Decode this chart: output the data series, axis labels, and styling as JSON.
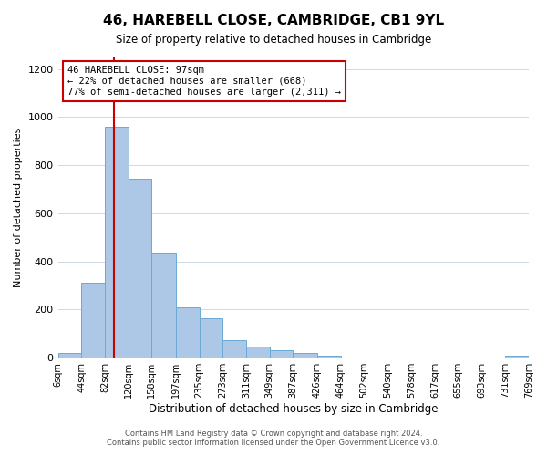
{
  "title": "46, HAREBELL CLOSE, CAMBRIDGE, CB1 9YL",
  "subtitle": "Size of property relative to detached houses in Cambridge",
  "xlabel": "Distribution of detached houses by size in Cambridge",
  "ylabel": "Number of detached properties",
  "bin_labels": [
    "6sqm",
    "44sqm",
    "82sqm",
    "120sqm",
    "158sqm",
    "197sqm",
    "235sqm",
    "273sqm",
    "311sqm",
    "349sqm",
    "387sqm",
    "426sqm",
    "464sqm",
    "502sqm",
    "540sqm",
    "578sqm",
    "617sqm",
    "655sqm",
    "693sqm",
    "731sqm",
    "769sqm"
  ],
  "bar_heights": [
    20,
    310,
    960,
    745,
    435,
    210,
    165,
    72,
    47,
    33,
    18,
    8,
    0,
    0,
    0,
    0,
    0,
    0,
    0,
    8
  ],
  "bar_color": "#adc8e6",
  "bar_edge_color": "#6aaad4",
  "vline_x": 97,
  "vline_color": "#cc0000",
  "annotation_text": "46 HAREBELL CLOSE: 97sqm\n← 22% of detached houses are smaller (668)\n77% of semi-detached houses are larger (2,311) →",
  "annotation_box_color": "#ffffff",
  "annotation_box_edge_color": "#cc0000",
  "ylim": [
    0,
    1250
  ],
  "yticks": [
    0,
    200,
    400,
    600,
    800,
    1000,
    1200
  ],
  "footer_line1": "Contains HM Land Registry data © Crown copyright and database right 2024.",
  "footer_line2": "Contains public sector information licensed under the Open Government Licence v3.0.",
  "background_color": "#ffffff",
  "grid_color": "#d0d8e8"
}
